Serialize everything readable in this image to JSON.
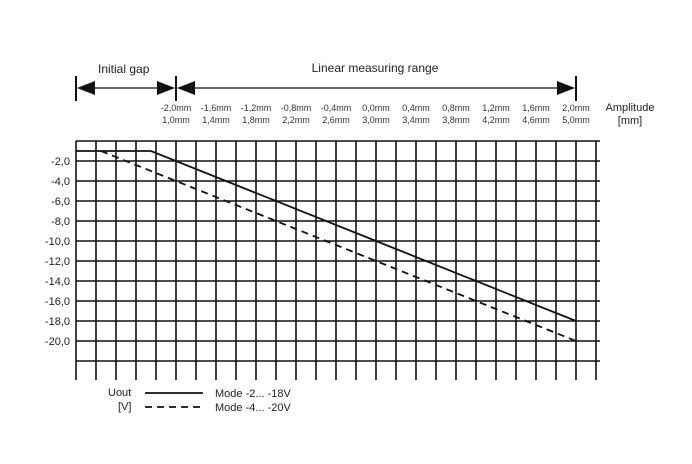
{
  "chart_data": {
    "type": "line",
    "title": "",
    "annotations": {
      "initial_gap": "Initial gap",
      "linear_range": "Linear measuring range"
    },
    "xlabel": "Amplitude",
    "xunit": "[mm]",
    "ylabel": "Uout",
    "yunit": "[V]",
    "x_ticks_top": [
      "-2,0mm",
      "-1,6mm",
      "-1,2mm",
      "-0,8mm",
      "-0,4mm",
      "0,0mm",
      "0,4mm",
      "0,8mm",
      "1,2mm",
      "1,6mm",
      "2,0mm"
    ],
    "x_ticks_bottom": [
      "1,0mm",
      "1,4mm",
      "1,8mm",
      "2,2mm",
      "2,6mm",
      "3,0mm",
      "3,4mm",
      "3,8mm",
      "4,2mm",
      "4,6mm",
      "5,0mm"
    ],
    "y_ticks": [
      "-2,0",
      "-4,0",
      "-6,0",
      "-8,0",
      "-10,0",
      "-12,0",
      "-14,0",
      "-16,0",
      "-18,0",
      "-20,0"
    ],
    "xlim": [
      0,
      5.2
    ],
    "ylim": [
      0,
      -22
    ],
    "grid": true,
    "series": [
      {
        "name": "Mode -2... -18V",
        "style": "solid",
        "x": [
          0,
          0.75,
          5.0
        ],
        "y": [
          -1,
          -1,
          -18
        ]
      },
      {
        "name": "Mode -4... -20V",
        "style": "dashed",
        "x": [
          0.25,
          1.0,
          5.0
        ],
        "y": [
          -1,
          -4,
          -20
        ]
      }
    ],
    "legend_position": "bottom-left"
  }
}
